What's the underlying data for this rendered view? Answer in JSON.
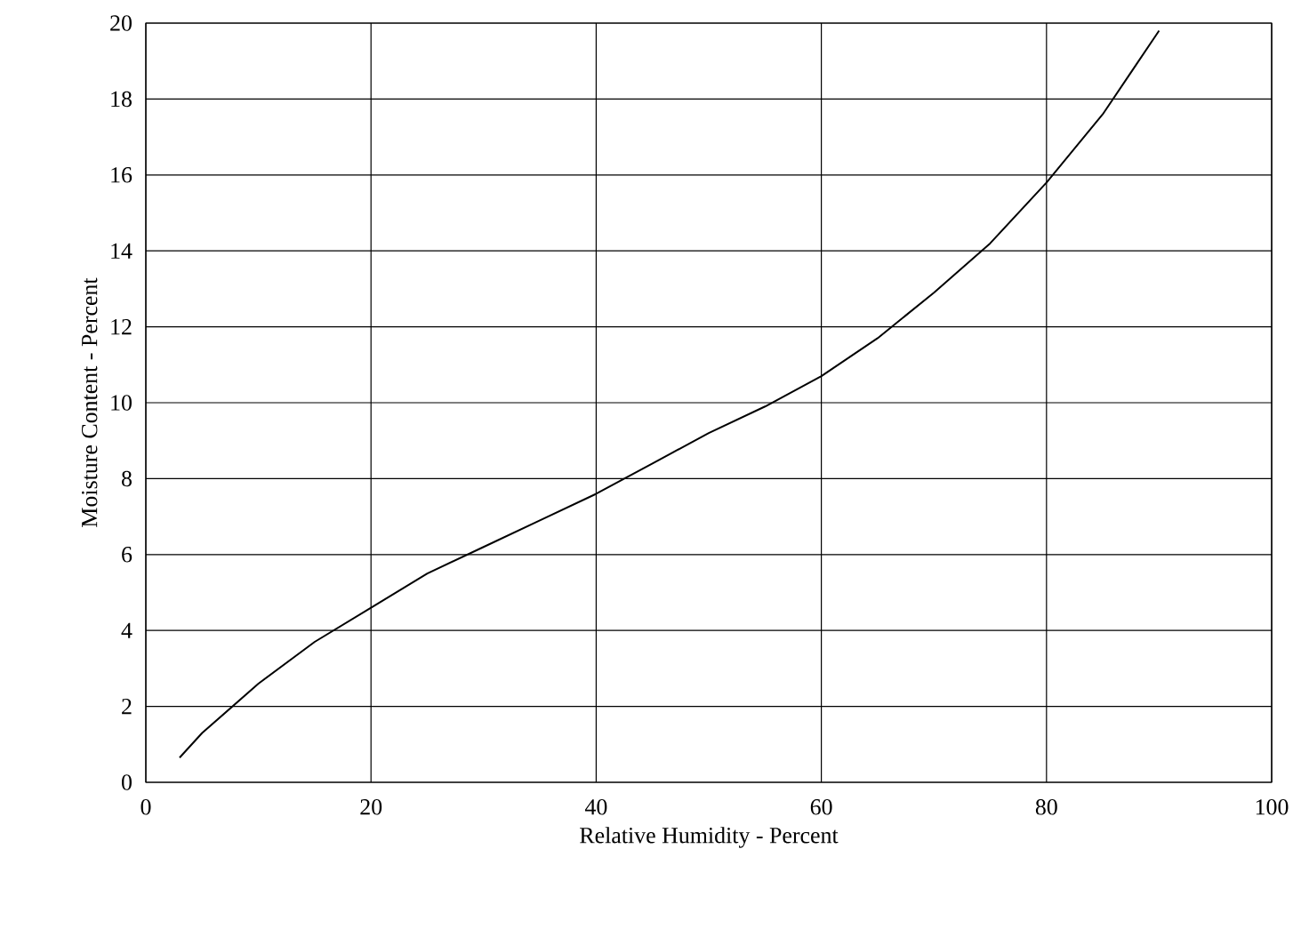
{
  "chart_data": {
    "type": "line",
    "xlabel": "Relative Humidity - Percent",
    "ylabel": "Moisture Content - Percent",
    "series": [
      {
        "color": "#000000",
        "x": [
          3,
          5,
          10,
          15,
          20,
          25,
          30,
          35,
          40,
          45,
          50,
          55,
          60,
          65,
          70,
          75,
          80,
          85,
          90
        ],
        "values": [
          0.65,
          1.3,
          2.6,
          3.7,
          4.6,
          5.5,
          6.2,
          6.9,
          7.6,
          8.4,
          9.2,
          9.9,
          10.7,
          11.7,
          12.9,
          14.2,
          15.8,
          17.6,
          19.8
        ]
      }
    ],
    "xlim": [
      0,
      100
    ],
    "ylim": [
      0,
      20
    ],
    "xticks": [
      0,
      20,
      40,
      60,
      80,
      100
    ],
    "yticks": [
      0,
      2,
      4,
      6,
      8,
      10,
      12,
      14,
      16,
      18,
      20
    ],
    "grid": true,
    "marker": "none",
    "line_style": "solid"
  }
}
